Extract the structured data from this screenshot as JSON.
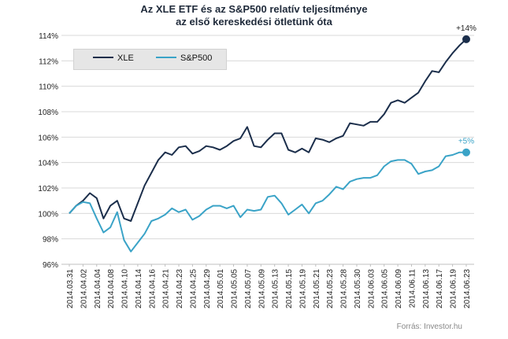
{
  "chart_data": {
    "type": "line",
    "title_line1": "Az XLE ETF és az S&P500 relatív teljesítménye",
    "title_line2": "az első kereskedési ötletünk óta",
    "source": "Forrás: Investor.hu",
    "ylim": [
      96,
      114
    ],
    "y_ticks": [
      "96%",
      "98%",
      "100%",
      "102%",
      "104%",
      "106%",
      "108%",
      "110%",
      "112%",
      "114%"
    ],
    "y_tick_values": [
      96,
      98,
      100,
      102,
      104,
      106,
      108,
      110,
      112,
      114
    ],
    "x_ticks": [
      "2014.03.31",
      "2014.04.02",
      "2014.04.04",
      "2014.04.08",
      "2014.04.10",
      "2014.04.14",
      "2014.04.16",
      "2014.04.21",
      "2014.04.23",
      "2014.04.25",
      "2014.04.29",
      "2014.05.01",
      "2014.05.05",
      "2014.05.07",
      "2014.05.09",
      "2014.05.13",
      "2014.05.15",
      "2014.05.19",
      "2014.05.21",
      "2014.05.23",
      "2014.05.28",
      "2014.05.30",
      "2014.06.03",
      "2014.06.05",
      "2014.06.09",
      "2014.06.11",
      "2014.06.13",
      "2014.06.17",
      "2014.06.19",
      "2014.06.23"
    ],
    "grid": true,
    "legend_position": "top-left",
    "series": [
      {
        "name": "XLE",
        "color": "#1b2e4b",
        "end_label": "+14%",
        "values": [
          100.0,
          100.6,
          101.0,
          101.6,
          101.2,
          99.6,
          100.6,
          101.0,
          99.6,
          99.4,
          100.8,
          102.2,
          103.2,
          104.2,
          104.8,
          104.6,
          105.2,
          105.3,
          104.7,
          104.9,
          105.3,
          105.2,
          105.0,
          105.3,
          105.7,
          105.9,
          106.8,
          105.3,
          105.2,
          105.8,
          106.3,
          106.3,
          105.0,
          104.8,
          105.1,
          104.8,
          105.9,
          105.8,
          105.6,
          105.9,
          106.1,
          107.1,
          107.0,
          106.9,
          107.2,
          107.2,
          107.8,
          108.7,
          108.9,
          108.7,
          109.1,
          109.5,
          110.4,
          111.2,
          111.1,
          111.9,
          112.6,
          113.2,
          113.7
        ]
      },
      {
        "name": "S&P500",
        "color": "#3aa3c7",
        "end_label": "+5%",
        "values": [
          100.0,
          100.6,
          100.9,
          100.8,
          99.6,
          98.5,
          98.9,
          100.1,
          97.9,
          97.0,
          97.7,
          98.4,
          99.4,
          99.6,
          99.9,
          100.4,
          100.1,
          100.3,
          99.5,
          99.8,
          100.3,
          100.6,
          100.6,
          100.4,
          100.6,
          99.7,
          100.3,
          100.2,
          100.3,
          101.3,
          101.4,
          100.8,
          99.9,
          100.3,
          100.7,
          100.0,
          100.8,
          101.0,
          101.5,
          102.1,
          101.9,
          102.5,
          102.7,
          102.8,
          102.8,
          103.0,
          103.7,
          104.1,
          104.2,
          104.2,
          103.9,
          103.1,
          103.3,
          103.4,
          103.7,
          104.5,
          104.6,
          104.8,
          104.8
        ]
      }
    ]
  }
}
